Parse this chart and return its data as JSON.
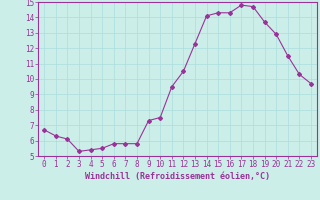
{
  "x": [
    0,
    1,
    2,
    3,
    4,
    5,
    6,
    7,
    8,
    9,
    10,
    11,
    12,
    13,
    14,
    15,
    16,
    17,
    18,
    19,
    20,
    21,
    22,
    23
  ],
  "y": [
    6.7,
    6.3,
    6.1,
    5.3,
    5.4,
    5.5,
    5.8,
    5.8,
    5.8,
    7.3,
    7.5,
    9.5,
    10.5,
    12.3,
    14.1,
    14.3,
    14.3,
    14.8,
    14.7,
    13.7,
    12.9,
    11.5,
    10.3,
    9.7
  ],
  "line_color": "#993399",
  "marker": "D",
  "marker_size": 2,
  "xlabel": "Windchill (Refroidissement éolien,°C)",
  "xlim": [
    -0.5,
    23.5
  ],
  "ylim": [
    5,
    15
  ],
  "yticks": [
    5,
    6,
    7,
    8,
    9,
    10,
    11,
    12,
    13,
    14,
    15
  ],
  "xticks": [
    0,
    1,
    2,
    3,
    4,
    5,
    6,
    7,
    8,
    9,
    10,
    11,
    12,
    13,
    14,
    15,
    16,
    17,
    18,
    19,
    20,
    21,
    22,
    23
  ],
  "bg_color": "#cceee8",
  "grid_color": "#aadddd",
  "axis_color": "#993399",
  "font_color": "#993399",
  "tick_fontsize": 5.5,
  "xlabel_fontsize": 6.0
}
